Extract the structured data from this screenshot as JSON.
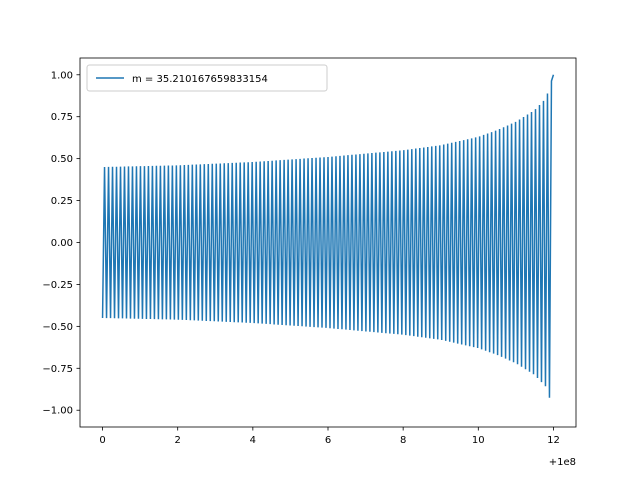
{
  "chart_data": {
    "type": "line",
    "x_offset_label": "+1e8",
    "xlim": [
      -0.6,
      12.6
    ],
    "ylim": [
      -1.1,
      1.1
    ],
    "x_ticks": [
      0,
      2,
      4,
      6,
      8,
      10,
      12
    ],
    "x_tick_labels": [
      "0",
      "2",
      "4",
      "6",
      "8",
      "10",
      "12"
    ],
    "y_ticks": [
      1.0,
      0.75,
      0.5,
      0.25,
      0.0,
      -0.25,
      -0.5,
      -0.75,
      -1.0
    ],
    "y_tick_labels": [
      "1.00",
      "0.75",
      "0.50",
      "0.25",
      "0.00",
      "−0.25",
      "−0.50",
      "−0.75",
      "−1.00"
    ],
    "grid": false,
    "legend_position": "upper-left",
    "series": [
      {
        "name": "m = 35.210167659833154",
        "color": "#1f77b4",
        "x_range": [
          0,
          12
        ],
        "envelope": {
          "x": [
            0,
            2,
            4,
            6,
            8,
            9,
            10,
            10.5,
            11,
            11.5,
            11.8,
            12
          ],
          "amplitude": [
            0.45,
            0.46,
            0.48,
            0.51,
            0.55,
            0.58,
            0.63,
            0.67,
            0.72,
            0.79,
            0.86,
            1.0
          ]
        },
        "cycles": 113,
        "start_y": -0.45,
        "end_y": 1.0
      }
    ]
  }
}
